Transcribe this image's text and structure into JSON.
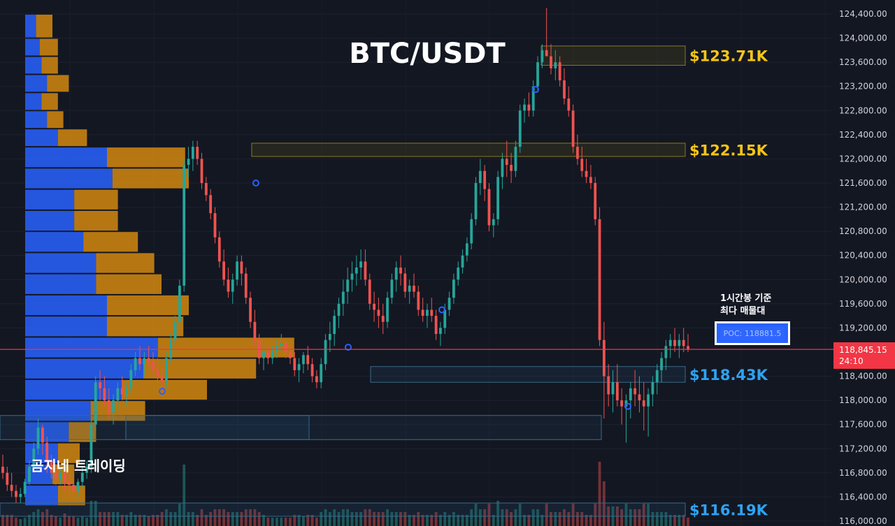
{
  "chart_data": {
    "type": "candlestick",
    "title": "BTC/USDT",
    "y_axis": {
      "min": 116000,
      "max": 124400,
      "ticks": [
        "124,400.00",
        "124,000.00",
        "123,600.00",
        "123,200.00",
        "122,800.00",
        "122,400.00",
        "122,000.00",
        "121,600.00",
        "121,200.00",
        "120,800.00",
        "120,400.00",
        "120,000.00",
        "119,600.00",
        "119,200.00",
        "118,400.00",
        "118,000.00",
        "117,600.00",
        "117,200.00",
        "116,800.00",
        "116,400.00",
        "116,000.00"
      ]
    },
    "levels": [
      {
        "label": "$123.71K",
        "value": 123710,
        "color": "#f5c518"
      },
      {
        "label": "$122.15K",
        "value": 122150,
        "color": "#f5c518"
      },
      {
        "label": "$118.43K",
        "value": 118430,
        "color": "#2ea3f2"
      },
      {
        "label": "$116.19K",
        "value": 116190,
        "color": "#2ea3f2"
      }
    ],
    "current_price": {
      "value": "118,845.15",
      "countdown": "24:10"
    },
    "poc": {
      "label": "POC: 118881.5",
      "value": 118881.5
    },
    "note_lines": [
      "1시간봉 기준",
      "최다 매물대"
    ],
    "brand": "곰지네 트레이딩",
    "volume_profile": [
      {
        "low": 124000,
        "high": 124400,
        "buy": 0.6,
        "sell": 0.9
      },
      {
        "low": 123700,
        "high": 124000,
        "buy": 0.8,
        "sell": 1.0
      },
      {
        "low": 123400,
        "high": 123700,
        "buy": 0.9,
        "sell": 0.9
      },
      {
        "low": 123100,
        "high": 123400,
        "buy": 1.2,
        "sell": 1.2
      },
      {
        "low": 122800,
        "high": 123100,
        "buy": 0.9,
        "sell": 0.9
      },
      {
        "low": 122500,
        "high": 122800,
        "buy": 1.2,
        "sell": 0.9
      },
      {
        "low": 122200,
        "high": 122500,
        "buy": 1.8,
        "sell": 1.6
      },
      {
        "low": 121850,
        "high": 122200,
        "buy": 4.5,
        "sell": 4.3
      },
      {
        "low": 121500,
        "high": 121850,
        "buy": 4.8,
        "sell": 4.2
      },
      {
        "low": 121150,
        "high": 121500,
        "buy": 2.7,
        "sell": 2.4
      },
      {
        "low": 120800,
        "high": 121150,
        "buy": 2.7,
        "sell": 2.4
      },
      {
        "low": 120450,
        "high": 120800,
        "buy": 3.2,
        "sell": 3.0
      },
      {
        "low": 120100,
        "high": 120450,
        "buy": 3.9,
        "sell": 3.2
      },
      {
        "low": 119750,
        "high": 120100,
        "buy": 3.9,
        "sell": 3.6
      },
      {
        "low": 119400,
        "high": 119750,
        "buy": 4.5,
        "sell": 4.5
      },
      {
        "low": 119050,
        "high": 119400,
        "buy": 4.5,
        "sell": 4.2
      },
      {
        "low": 118700,
        "high": 119050,
        "buy": 7.3,
        "sell": 7.5
      },
      {
        "low": 118350,
        "high": 118700,
        "buy": 6.5,
        "sell": 6.2
      },
      {
        "low": 118000,
        "high": 118350,
        "buy": 5.3,
        "sell": 4.7
      },
      {
        "low": 117650,
        "high": 118000,
        "buy": 3.6,
        "sell": 3.0
      },
      {
        "low": 117300,
        "high": 117650,
        "buy": 2.4,
        "sell": 1.5
      },
      {
        "low": 116950,
        "high": 117300,
        "buy": 1.8,
        "sell": 1.2
      },
      {
        "low": 116600,
        "high": 116950,
        "buy": 1.5,
        "sell": 1.2
      },
      {
        "low": 116250,
        "high": 116600,
        "buy": 1.8,
        "sell": 1.5
      }
    ],
    "candles": [
      [
        116900,
        117100,
        116700,
        116800
      ],
      [
        116800,
        116900,
        116500,
        116600
      ],
      [
        116600,
        116800,
        116400,
        116500
      ],
      [
        116500,
        116600,
        116300,
        116400
      ],
      [
        116400,
        116550,
        116300,
        116450
      ],
      [
        116450,
        116700,
        116400,
        116650
      ],
      [
        116650,
        117000,
        116600,
        116900
      ],
      [
        116900,
        117300,
        116800,
        117200
      ],
      [
        117200,
        117700,
        117100,
        117550
      ],
      [
        117550,
        117600,
        117100,
        117300
      ],
      [
        117300,
        117400,
        116800,
        117000
      ],
      [
        117000,
        117100,
        116700,
        116800
      ],
      [
        116800,
        116950,
        116600,
        116700
      ],
      [
        116700,
        116900,
        116600,
        116800
      ],
      [
        116800,
        116950,
        116500,
        116650
      ],
      [
        116650,
        116800,
        116450,
        116600
      ],
      [
        116600,
        116750,
        116400,
        116500
      ],
      [
        116500,
        116700,
        116400,
        116650
      ],
      [
        116650,
        116900,
        116550,
        116800
      ],
      [
        116800,
        117000,
        116700,
        116900
      ],
      [
        116900,
        117700,
        116800,
        117600
      ],
      [
        117600,
        118400,
        117500,
        118300
      ],
      [
        118300,
        118500,
        118000,
        118200
      ],
      [
        118200,
        118400,
        117900,
        118000
      ],
      [
        118000,
        118200,
        117700,
        117800
      ],
      [
        117800,
        118100,
        117600,
        118000
      ],
      [
        118000,
        118300,
        117800,
        118200
      ],
      [
        118200,
        118400,
        118000,
        118100
      ],
      [
        118100,
        118300,
        117900,
        118200
      ],
      [
        118200,
        118600,
        118100,
        118500
      ],
      [
        118500,
        118800,
        118400,
        118700
      ],
      [
        118700,
        118900,
        118500,
        118600
      ],
      [
        118600,
        118800,
        118400,
        118700
      ],
      [
        118700,
        118900,
        118550,
        118650
      ],
      [
        118650,
        118800,
        118400,
        118500
      ],
      [
        118500,
        118700,
        118300,
        118400
      ],
      [
        118400,
        118600,
        118100,
        118300
      ],
      [
        118300,
        118800,
        118200,
        118700
      ],
      [
        118700,
        119100,
        118600,
        119000
      ],
      [
        119000,
        119400,
        118900,
        119300
      ],
      [
        119300,
        120000,
        119200,
        119900
      ],
      [
        119900,
        122000,
        119800,
        121900
      ],
      [
        121900,
        122200,
        121700,
        122000
      ],
      [
        122000,
        122300,
        121800,
        122200
      ],
      [
        122200,
        122300,
        121900,
        122000
      ],
      [
        122000,
        122100,
        121500,
        121600
      ],
      [
        121600,
        121700,
        121300,
        121400
      ],
      [
        121400,
        121500,
        121000,
        121100
      ],
      [
        121100,
        121200,
        120600,
        120700
      ],
      [
        120700,
        120800,
        120200,
        120300
      ],
      [
        120300,
        120500,
        119900,
        120000
      ],
      [
        120000,
        120200,
        119700,
        119800
      ],
      [
        119800,
        120100,
        119600,
        120000
      ],
      [
        120000,
        120400,
        119900,
        120300
      ],
      [
        120300,
        120400,
        119900,
        120100
      ],
      [
        120100,
        120200,
        119600,
        119700
      ],
      [
        119700,
        119800,
        119200,
        119300
      ],
      [
        119300,
        119500,
        118900,
        119000
      ],
      [
        119000,
        119100,
        118600,
        118700
      ],
      [
        118700,
        118900,
        118500,
        118800
      ],
      [
        118800,
        118900,
        118600,
        118700
      ],
      [
        118700,
        118900,
        118600,
        118800
      ],
      [
        118800,
        119000,
        118700,
        118900
      ],
      [
        118900,
        119100,
        118800,
        118950
      ],
      [
        118950,
        119000,
        118700,
        118800
      ],
      [
        118800,
        118900,
        118600,
        118700
      ],
      [
        118700,
        118800,
        118400,
        118500
      ],
      [
        118500,
        118700,
        118300,
        118600
      ],
      [
        118600,
        118800,
        118450,
        118750
      ],
      [
        118750,
        118900,
        118500,
        118600
      ],
      [
        118600,
        118700,
        118300,
        118400
      ],
      [
        118400,
        118500,
        118200,
        118300
      ],
      [
        118300,
        118700,
        118200,
        118600
      ],
      [
        118600,
        119100,
        118500,
        119000
      ],
      [
        119000,
        119300,
        118800,
        119100
      ],
      [
        119100,
        119500,
        118900,
        119400
      ],
      [
        119400,
        119700,
        119200,
        119600
      ],
      [
        119600,
        120000,
        119400,
        119800
      ],
      [
        119800,
        120200,
        119600,
        120000
      ],
      [
        120000,
        120300,
        119800,
        120100
      ],
      [
        120100,
        120400,
        119900,
        120200
      ],
      [
        120200,
        120500,
        120000,
        120300
      ],
      [
        120300,
        120500,
        119900,
        120000
      ],
      [
        120000,
        120100,
        119500,
        119600
      ],
      [
        119600,
        119800,
        119300,
        119500
      ],
      [
        119500,
        119700,
        119200,
        119400
      ],
      [
        119400,
        119600,
        119100,
        119300
      ],
      [
        119300,
        119800,
        119200,
        119700
      ],
      [
        119700,
        120100,
        119600,
        120000
      ],
      [
        120000,
        120300,
        119800,
        120200
      ],
      [
        120200,
        120400,
        119900,
        120100
      ],
      [
        120100,
        120200,
        119700,
        119800
      ],
      [
        119800,
        120000,
        119600,
        119900
      ],
      [
        119900,
        120100,
        119700,
        119800
      ],
      [
        119800,
        119900,
        119400,
        119500
      ],
      [
        119500,
        119700,
        119300,
        119400
      ],
      [
        119400,
        119600,
        119200,
        119500
      ],
      [
        119500,
        119700,
        119300,
        119400
      ],
      [
        119400,
        119500,
        119000,
        119100
      ],
      [
        119100,
        119300,
        118900,
        119200
      ],
      [
        119200,
        119600,
        119100,
        119500
      ],
      [
        119500,
        119800,
        119400,
        119700
      ],
      [
        119700,
        120100,
        119600,
        120000
      ],
      [
        120000,
        120300,
        119900,
        120200
      ],
      [
        120200,
        120500,
        120100,
        120400
      ],
      [
        120400,
        120700,
        120300,
        120600
      ],
      [
        120600,
        121100,
        120500,
        121000
      ],
      [
        121000,
        121700,
        120900,
        121600
      ],
      [
        121600,
        122000,
        121400,
        121800
      ],
      [
        121800,
        121900,
        121300,
        121500
      ],
      [
        121500,
        121600,
        120800,
        120900
      ],
      [
        120900,
        121100,
        120700,
        121000
      ],
      [
        121000,
        121800,
        120900,
        121700
      ],
      [
        121700,
        122100,
        121500,
        122000
      ],
      [
        122000,
        122300,
        121700,
        121900
      ],
      [
        121900,
        122100,
        121600,
        121800
      ],
      [
        121800,
        122300,
        121700,
        122200
      ],
      [
        122200,
        122900,
        122100,
        122800
      ],
      [
        122800,
        123000,
        122600,
        122900
      ],
      [
        122900,
        123100,
        122700,
        122800
      ],
      [
        122800,
        123300,
        122700,
        123200
      ],
      [
        123200,
        123700,
        123100,
        123600
      ],
      [
        123600,
        123900,
        123500,
        123800
      ],
      [
        123800,
        124500,
        123700,
        123700
      ],
      [
        123700,
        123900,
        123400,
        123500
      ],
      [
        123500,
        123800,
        123300,
        123600
      ],
      [
        123600,
        123700,
        123200,
        123300
      ],
      [
        123300,
        123500,
        122900,
        123000
      ],
      [
        123000,
        123200,
        122700,
        122800
      ],
      [
        122800,
        122900,
        122100,
        122200
      ],
      [
        122200,
        122400,
        121900,
        122000
      ],
      [
        122000,
        122200,
        121700,
        121800
      ],
      [
        121800,
        122000,
        121600,
        121700
      ],
      [
        121700,
        121900,
        121500,
        121600
      ],
      [
        121600,
        121700,
        120900,
        121000
      ],
      [
        121000,
        121200,
        118900,
        119000
      ],
      [
        119000,
        119300,
        117700,
        118400
      ],
      [
        118400,
        118600,
        117900,
        118100
      ],
      [
        118100,
        118500,
        117800,
        118300
      ],
      [
        118300,
        118600,
        117900,
        118000
      ],
      [
        118000,
        118200,
        117600,
        117900
      ],
      [
        117900,
        118100,
        117300,
        118000
      ],
      [
        118000,
        118300,
        117700,
        118200
      ],
      [
        118200,
        118500,
        117900,
        118100
      ],
      [
        118100,
        118400,
        117800,
        118000
      ],
      [
        118000,
        118300,
        117500,
        117900
      ],
      [
        117900,
        118200,
        117400,
        118100
      ],
      [
        118100,
        118400,
        117900,
        118300
      ],
      [
        118300,
        118600,
        118100,
        118500
      ],
      [
        118500,
        118800,
        118300,
        118700
      ],
      [
        118700,
        119000,
        118500,
        118900
      ],
      [
        118900,
        119100,
        118700,
        119000
      ],
      [
        119000,
        119200,
        118800,
        118900
      ],
      [
        118900,
        119100,
        118700,
        119000
      ],
      [
        119000,
        119200,
        118800,
        118900
      ],
      [
        118900,
        119100,
        118800,
        118850
      ]
    ]
  }
}
